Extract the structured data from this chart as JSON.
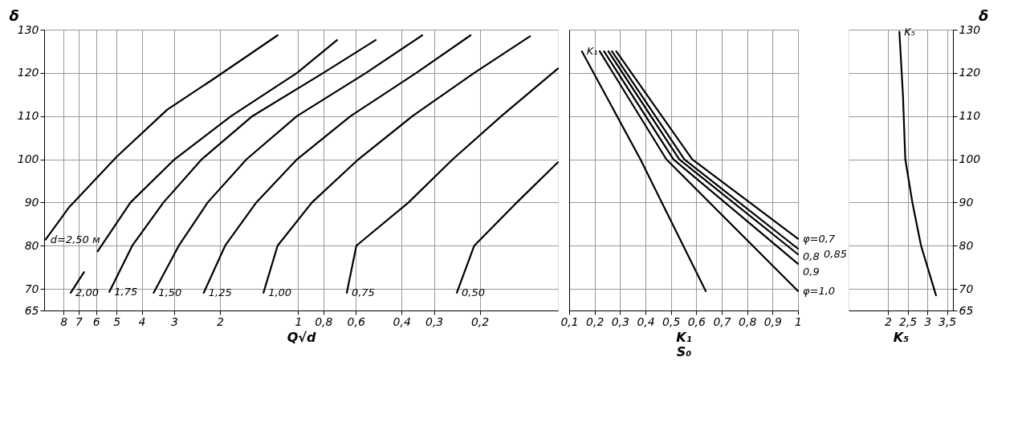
{
  "chart_data": [
    {
      "type": "line",
      "ylabel": "δ",
      "xlabel": "Q√d",
      "log": "x",
      "grid": true,
      "xlim": [
        9.5,
        0.1
      ],
      "xticks": [
        8,
        7,
        6,
        5,
        4,
        3,
        2,
        1,
        {
          "value": 0.8,
          "label": "0,8"
        },
        {
          "value": 0.6,
          "label": "0,6"
        },
        {
          "value": 0.4,
          "label": "0,4"
        },
        {
          "value": 0.3,
          "label": "0,3"
        },
        {
          "value": 0.2,
          "label": "0,2"
        }
      ],
      "ylim": [
        65,
        130
      ],
      "yticks": [
        65,
        70,
        80,
        90,
        100,
        110,
        120,
        130
      ],
      "series": [
        {
          "name": "d=2,50 м",
          "color": "#000000",
          "x": [
            9.38,
            7.64,
            4.99,
            3.19,
            2.08,
            1.2
          ],
          "values": [
            81.4,
            88.8,
            100.6,
            111.5,
            118.9,
            128.7
          ]
        },
        {
          "name": "2,00",
          "color": "#000000",
          "x": [
            7.51,
            6.67,
            6.3,
            5.91,
            4.42,
            2.99,
            1.81,
            1.01,
            0.708
          ],
          "values": [
            69.1,
            73.9,
            null,
            78.7,
            90,
            100,
            110,
            120,
            127.6
          ]
        },
        {
          "name": "1,75",
          "color": "#000000",
          "x": [
            5.33,
            4.35,
            3.3,
            2.35,
            1.5,
            0.8,
            0.503
          ],
          "values": [
            69.3,
            80,
            90,
            100,
            110,
            120,
            127.6
          ]
        },
        {
          "name": "1,50",
          "color": "#000000",
          "x": [
            3.6,
            2.88,
            2.23,
            1.58,
            1.01,
            0.548,
            0.333
          ],
          "values": [
            69.1,
            80,
            90,
            100,
            110,
            120,
            128.7
          ]
        },
        {
          "name": "1,25",
          "color": "#000000",
          "x": [
            2.31,
            1.91,
            1.45,
            1.01,
            0.628,
            0.351,
            0.217
          ],
          "values": [
            69.1,
            80,
            90,
            100,
            110,
            120,
            128.7
          ]
        },
        {
          "name": "1,00",
          "color": "#000000",
          "x": [
            1.36,
            1.2,
            0.885,
            0.586,
            0.363,
            0.21,
            0.128
          ],
          "values": [
            69.1,
            80,
            90,
            100,
            110,
            120,
            128.5
          ]
        },
        {
          "name": "0,75",
          "color": "#000000",
          "x": [
            0.65,
            0.597,
            0.376,
            0.254,
            0.165,
            0.1
          ],
          "values": [
            69.1,
            80,
            90,
            100,
            110,
            121
          ]
        },
        {
          "name": "0,50",
          "color": "#000000",
          "x": [
            0.245,
            0.21,
            0.144,
            0.1
          ],
          "values": [
            69.1,
            80,
            90,
            99.3
          ]
        }
      ]
    },
    {
      "type": "line",
      "xlabel": "K₁\nS₀",
      "grid": true,
      "tick_labels": "x",
      "xlim": [
        0.1,
        1
      ],
      "xticks": [
        {
          "value": 0.1,
          "label": "0,1"
        },
        {
          "value": 0.2,
          "label": "0,2"
        },
        {
          "value": 0.3,
          "label": "0,3"
        },
        {
          "value": 0.4,
          "label": "0,4"
        },
        {
          "value": 0.5,
          "label": "0,5"
        },
        {
          "value": 0.6,
          "label": "0,6"
        },
        {
          "value": 0.7,
          "label": "0,7"
        },
        {
          "value": 0.8,
          "label": "0,8"
        },
        {
          "value": 0.9,
          "label": "0,9"
        },
        1
      ],
      "ylim": [
        65,
        130
      ],
      "yticks": [
        65,
        70,
        80,
        90,
        100,
        110,
        120,
        130
      ],
      "series": [
        {
          "name": "K₁",
          "color": "#000000",
          "x": [
            0.15,
            0.38,
            0.637
          ],
          "values": [
            125,
            100,
            69.5
          ]
        },
        {
          "name": "φ=0,7",
          "color": "#000000",
          "x": [
            1,
            0.584,
            0.285
          ],
          "values": [
            81.6,
            100,
            125
          ]
        },
        {
          "name": "0,8",
          "color": "#000000",
          "x": [
            1,
            0.553,
            0.268
          ],
          "values": [
            79.3,
            100,
            125
          ]
        },
        {
          "name": "0,85",
          "color": "#000000",
          "x": [
            1,
            0.533,
            0.254
          ],
          "values": [
            78,
            100,
            125
          ]
        },
        {
          "name": "0,9",
          "color": "#000000",
          "x": [
            1,
            0.51,
            0.237
          ],
          "values": [
            75.8,
            100,
            125
          ]
        },
        {
          "name": "φ=1,0",
          "color": "#000000",
          "x": [
            1,
            0.482,
            0.22
          ],
          "values": [
            69.5,
            100,
            125
          ]
        }
      ]
    },
    {
      "type": "line",
      "xlabel": "K₅",
      "y2label": "δ",
      "grid": true,
      "xlim": [
        1,
        3.65
      ],
      "xticks": [
        2,
        {
          "value": 2.5,
          "label": "2,5"
        },
        3,
        {
          "value": 3.5,
          "label": "3,5"
        }
      ],
      "y2lim": [
        65,
        130
      ],
      "y2ticks": [
        65,
        70,
        80,
        90,
        100,
        110,
        120,
        130
      ],
      "series": [
        {
          "name": "K₅",
          "color": "#000000",
          "axis": "y2",
          "x": [
            2.29,
            2.38,
            2.44,
            2.62,
            2.84,
            3.22
          ],
          "values": [
            129.5,
            115,
            100,
            90,
            80,
            68.5
          ]
        }
      ]
    }
  ]
}
